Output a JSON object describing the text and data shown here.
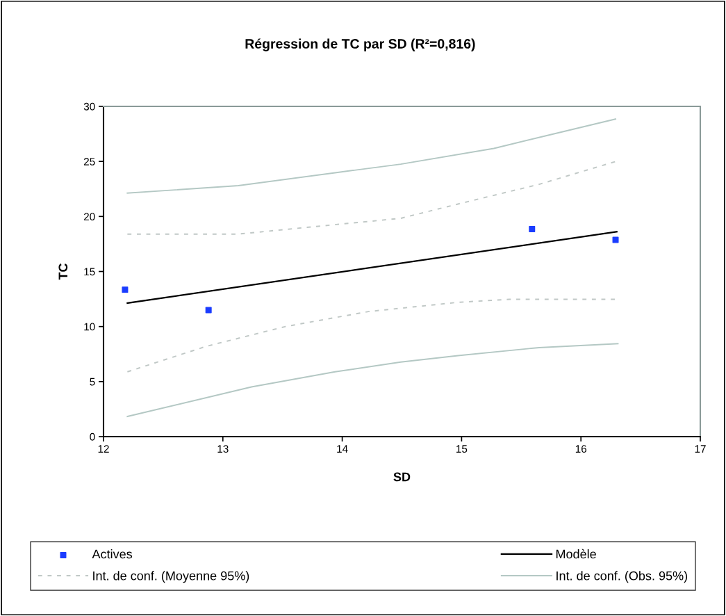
{
  "chart_data": {
    "type": "line",
    "title": "Régression de TC par SD (R²=0,816)",
    "xlabel": "SD",
    "ylabel": "TC",
    "xlim": [
      12,
      17
    ],
    "xticks": [
      12,
      13,
      14,
      15,
      16,
      17
    ],
    "ylim": [
      0,
      30
    ],
    "yticks": [
      0,
      5,
      10,
      15,
      20,
      25,
      30
    ],
    "grid": false,
    "legend": "bottom",
    "series": [
      {
        "name": "Actives",
        "type": "scatter",
        "marker": "square",
        "color": "#1a3cff",
        "x": [
          12.18,
          12.88,
          15.59,
          16.29
        ],
        "values": [
          13.35,
          11.5,
          18.86,
          17.87
        ]
      },
      {
        "name": "Modèle",
        "line_style": "solid",
        "color": "#000000",
        "x": [
          12.2,
          16.3
        ],
        "values": [
          12.13,
          18.61
        ]
      },
      {
        "name": "Int. de conf. (Moyenne 95%)",
        "line_style": "dashed",
        "color": "#c0c8c6",
        "x": [
          12.2,
          13.13,
          13.83,
          14.49,
          14.97,
          15.65,
          16.3
        ],
        "values": [
          18.4,
          18.4,
          19.14,
          19.83,
          21.13,
          22.92,
          25.02
        ]
      },
      {
        "name": "Int. de conf. (Obs. 95%)",
        "line_style": "solid",
        "color": "#b4c8c4",
        "x": [
          12.2,
          13.13,
          13.94,
          14.49,
          15.27,
          15.75,
          16.29
        ],
        "values": [
          22.12,
          22.8,
          23.97,
          24.75,
          26.18,
          27.44,
          28.85
        ]
      },
      {
        "line_style": "dashed",
        "color": "#c0c8c6",
        "x": [
          12.2,
          12.86,
          13.52,
          14.22,
          14.97,
          15.4,
          16.3
        ],
        "values": [
          5.89,
          8.2,
          9.99,
          11.36,
          12.2,
          12.47,
          12.47
        ]
      },
      {
        "line_style": "solid",
        "color": "#b4c8c4",
        "x": [
          12.2,
          13.24,
          13.94,
          14.49,
          14.97,
          15.65,
          16.31
        ],
        "values": [
          1.83,
          4.52,
          5.89,
          6.77,
          7.36,
          8.09,
          8.45
        ]
      }
    ]
  }
}
